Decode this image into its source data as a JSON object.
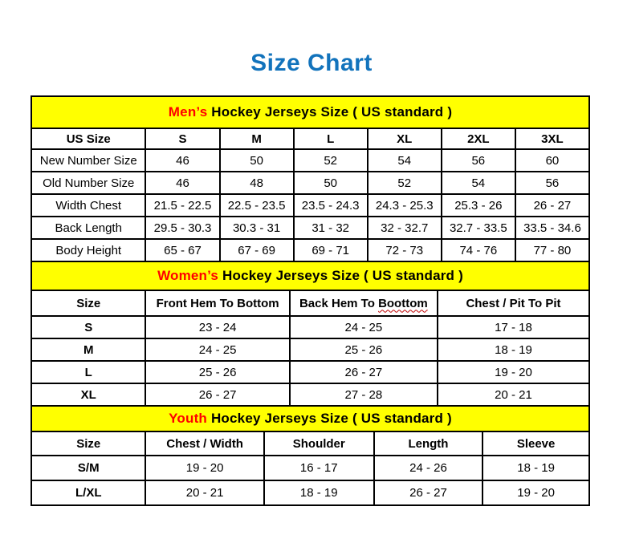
{
  "page": {
    "title": "Size Chart"
  },
  "colors": {
    "title_blue": "#1273BC",
    "band_yellow": "#FFFF00",
    "accent_red": "#FF0000",
    "border_black": "#000000",
    "squiggle_red": "#C00000"
  },
  "sections": [
    {
      "id": "mens",
      "band": {
        "highlight": "Men’s",
        "rest": " Hockey Jerseys Size ( US standard )"
      },
      "table": {
        "headers": [
          "US Size",
          "S",
          "M",
          "L",
          "XL",
          "2XL",
          "3XL"
        ],
        "rows": [
          {
            "label": "New Number Size",
            "values": [
              "46",
              "50",
              "52",
              "54",
              "56",
              "60"
            ]
          },
          {
            "label": "Old Number Size",
            "values": [
              "46",
              "48",
              "50",
              "52",
              "54",
              "56"
            ]
          },
          {
            "label": "Width Chest",
            "values": [
              "21.5 - 22.5",
              "22.5 - 23.5",
              "23.5 - 24.3",
              "24.3 - 25.3",
              "25.3 - 26",
              "26 - 27"
            ]
          },
          {
            "label": "Back Length",
            "values": [
              "29.5 - 30.3",
              "30.3 - 31",
              "31 - 32",
              "32 - 32.7",
              "32.7 - 33.5",
              "33.5 - 34.6"
            ]
          },
          {
            "label": "Body Height",
            "values": [
              "65 - 67",
              "67 - 69",
              "69 - 71",
              "72 - 73",
              "74 - 76",
              "77 - 80"
            ]
          }
        ]
      }
    },
    {
      "id": "women",
      "band": {
        "highlight": "Women’s",
        "rest": " Hockey Jerseys Size ( US standard )"
      },
      "table": {
        "headers": [
          "Size",
          "Front Hem To Bottom",
          {
            "text": "Back Hem To ",
            "wavy": "Boottom"
          },
          "Chest / Pit To Pit"
        ],
        "rows": [
          {
            "label": "S",
            "values": [
              "23 - 24",
              "24 - 25",
              "17 - 18"
            ]
          },
          {
            "label": "M",
            "values": [
              "24 - 25",
              "25 - 26",
              "18 - 19"
            ]
          },
          {
            "label": "L",
            "values": [
              "25 - 26",
              "26 - 27",
              "19 - 20"
            ]
          },
          {
            "label": "XL",
            "values": [
              "26 - 27",
              "27 - 28",
              "20 - 21"
            ]
          }
        ]
      }
    },
    {
      "id": "youth",
      "band": {
        "highlight": "Youth",
        "rest": " Hockey Jerseys Size ( US standard )"
      },
      "table": {
        "headers": [
          "Size",
          "Chest / Width",
          "Shoulder",
          "Length",
          "Sleeve"
        ],
        "rows": [
          {
            "label": "S/M",
            "values": [
              "19 - 20",
              "16 - 17",
              "24 - 26",
              "18 - 19"
            ]
          },
          {
            "label": "L/XL",
            "values": [
              "20 - 21",
              "18 - 19",
              "26 - 27",
              "19 - 20"
            ]
          }
        ]
      }
    }
  ]
}
